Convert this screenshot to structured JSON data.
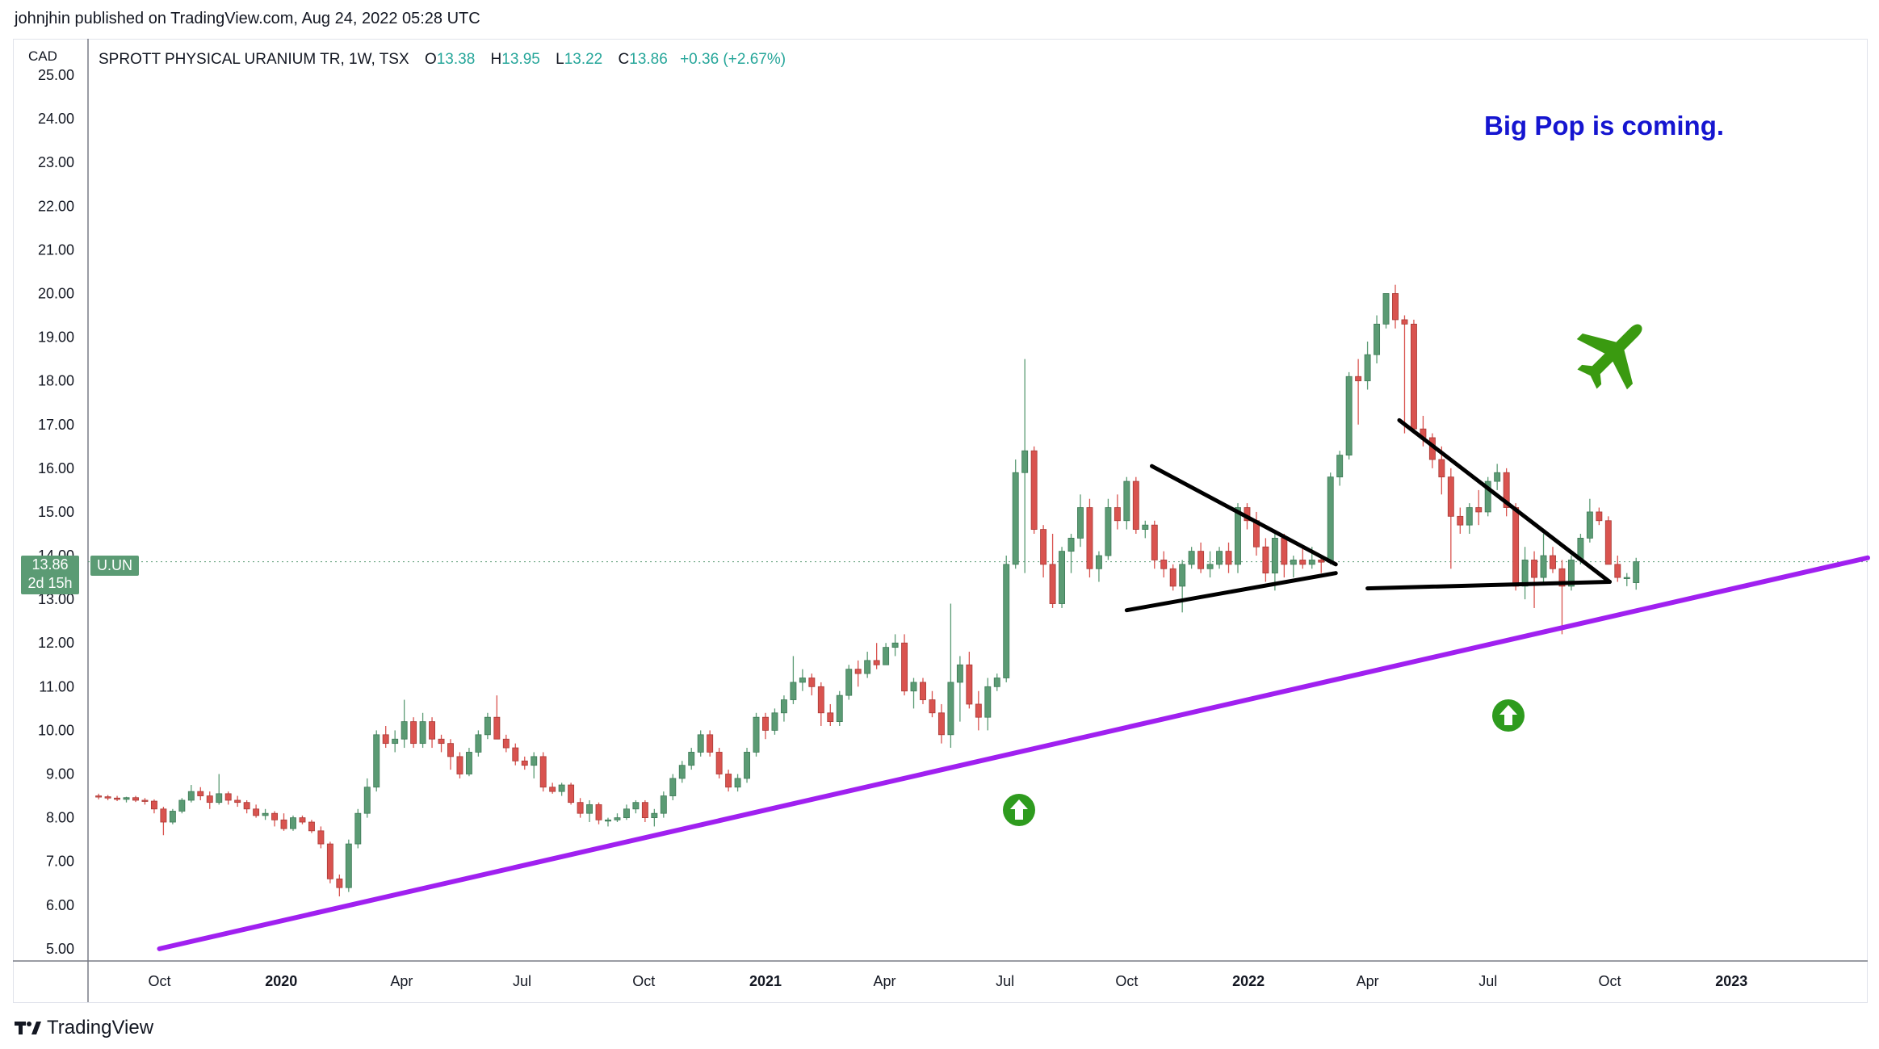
{
  "publisher": {
    "author": "johnjhin",
    "published_text": "published on TradingView.com, Aug 24, 2022 05:28 UTC"
  },
  "brand": {
    "logo_text": "TradingView",
    "logo_icon": "tradingview-logo-icon"
  },
  "colors": {
    "up": "#5b9b74",
    "down": "#d9534f",
    "trendline": "#a020f0",
    "triangle": "#000000",
    "annotation": "#1515d0",
    "arrow": "#2e9b1e",
    "plane": "#3a9a10"
  },
  "legend": {
    "currency": "CAD",
    "title": "SPROTT PHYSICAL URANIUM TR, 1W, TSX",
    "open_label": "O",
    "open": "13.38",
    "high_label": "H",
    "high": "13.95",
    "low_label": "L",
    "low": "13.22",
    "close_label": "C",
    "close": "13.86",
    "change": "+0.36 (+2.67%)"
  },
  "price_tag": {
    "price": "13.86",
    "countdown": "2d 15h",
    "symbol": "U.UN"
  },
  "annotation": {
    "text": "Big Pop is coming."
  },
  "chart_data": {
    "type": "candlestick",
    "interval": "1W",
    "y_ticks": [
      "5.00",
      "6.00",
      "7.00",
      "8.00",
      "9.00",
      "10.00",
      "11.00",
      "12.00",
      "13.00",
      "14.00",
      "15.00",
      "16.00",
      "17.00",
      "18.00",
      "19.00",
      "20.00",
      "21.00",
      "22.00",
      "23.00",
      "24.00",
      "25.00"
    ],
    "ylim": [
      4.85,
      25.0
    ],
    "x_ticks": [
      "Oct",
      "2020",
      "Apr",
      "Jul",
      "Oct",
      "2021",
      "Apr",
      "Jul",
      "Oct",
      "2022",
      "Apr",
      "Jul",
      "Oct",
      "2023"
    ],
    "x_tick_dates": [
      "2019-10-01",
      "2020-01-01",
      "2020-04-01",
      "2020-07-01",
      "2020-10-01",
      "2021-01-01",
      "2021-04-01",
      "2021-07-01",
      "2021-10-01",
      "2022-01-01",
      "2022-04-01",
      "2022-07-01",
      "2022-10-01",
      "2023-01-01"
    ],
    "xlim": [
      "2019-08-08",
      "2023-04-14"
    ],
    "start_week": "2019-08-16",
    "candles_ohlc": [
      [
        8.5,
        8.55,
        8.42,
        8.48
      ],
      [
        8.48,
        8.52,
        8.4,
        8.45
      ],
      [
        8.45,
        8.5,
        8.38,
        8.42
      ],
      [
        8.42,
        8.48,
        8.35,
        8.46
      ],
      [
        8.46,
        8.5,
        8.36,
        8.4
      ],
      [
        8.4,
        8.45,
        8.3,
        8.38
      ],
      [
        8.38,
        8.42,
        8.1,
        8.2
      ],
      [
        8.2,
        8.25,
        7.6,
        7.9
      ],
      [
        7.9,
        8.2,
        7.85,
        8.15
      ],
      [
        8.15,
        8.45,
        8.1,
        8.4
      ],
      [
        8.4,
        8.75,
        8.35,
        8.6
      ],
      [
        8.6,
        8.7,
        8.4,
        8.5
      ],
      [
        8.5,
        8.6,
        8.2,
        8.35
      ],
      [
        8.35,
        9.0,
        8.3,
        8.55
      ],
      [
        8.55,
        8.6,
        8.3,
        8.4
      ],
      [
        8.4,
        8.5,
        8.25,
        8.35
      ],
      [
        8.35,
        8.4,
        8.1,
        8.2
      ],
      [
        8.2,
        8.3,
        8.0,
        8.05
      ],
      [
        8.05,
        8.2,
        7.95,
        8.1
      ],
      [
        8.1,
        8.15,
        7.8,
        7.95
      ],
      [
        7.95,
        8.1,
        7.7,
        7.75
      ],
      [
        7.75,
        8.05,
        7.7,
        8.0
      ],
      [
        8.0,
        8.05,
        7.85,
        7.9
      ],
      [
        7.9,
        7.95,
        7.65,
        7.7
      ],
      [
        7.7,
        7.8,
        7.3,
        7.4
      ],
      [
        7.4,
        7.45,
        6.5,
        6.6
      ],
      [
        6.6,
        6.7,
        6.2,
        6.4
      ],
      [
        6.4,
        7.5,
        6.3,
        7.4
      ],
      [
        7.4,
        8.2,
        7.3,
        8.1
      ],
      [
        8.1,
        8.9,
        8.0,
        8.7
      ],
      [
        8.7,
        10.0,
        8.6,
        9.9
      ],
      [
        9.9,
        10.1,
        9.6,
        9.7
      ],
      [
        9.7,
        10.0,
        9.5,
        9.8
      ],
      [
        9.8,
        10.7,
        9.6,
        10.2
      ],
      [
        10.2,
        10.3,
        9.6,
        9.7
      ],
      [
        9.7,
        10.4,
        9.6,
        10.2
      ],
      [
        10.2,
        10.3,
        9.6,
        9.8
      ],
      [
        9.8,
        9.9,
        9.5,
        9.7
      ],
      [
        9.7,
        9.8,
        9.1,
        9.4
      ],
      [
        9.4,
        9.5,
        8.9,
        9.0
      ],
      [
        9.0,
        9.6,
        8.95,
        9.5
      ],
      [
        9.5,
        10.0,
        9.4,
        9.9
      ],
      [
        9.9,
        10.4,
        9.8,
        10.3
      ],
      [
        10.3,
        10.8,
        10.0,
        9.8
      ],
      [
        9.8,
        9.9,
        9.5,
        9.6
      ],
      [
        9.6,
        9.7,
        9.2,
        9.3
      ],
      [
        9.3,
        9.4,
        9.1,
        9.2
      ],
      [
        9.2,
        9.5,
        8.9,
        9.4
      ],
      [
        9.4,
        9.5,
        8.6,
        8.7
      ],
      [
        8.7,
        8.8,
        8.55,
        8.6
      ],
      [
        8.6,
        8.8,
        8.5,
        8.75
      ],
      [
        8.75,
        8.8,
        8.3,
        8.35
      ],
      [
        8.35,
        8.45,
        8.0,
        8.1
      ],
      [
        8.1,
        8.4,
        7.9,
        8.3
      ],
      [
        8.3,
        8.35,
        7.85,
        7.95
      ],
      [
        7.95,
        8.0,
        7.8,
        7.95
      ],
      [
        7.95,
        8.1,
        7.9,
        8.0
      ],
      [
        8.0,
        8.3,
        7.95,
        8.2
      ],
      [
        8.2,
        8.4,
        8.1,
        8.35
      ],
      [
        8.35,
        8.4,
        7.9,
        8.0
      ],
      [
        8.0,
        8.2,
        7.8,
        8.1
      ],
      [
        8.1,
        8.6,
        8.0,
        8.5
      ],
      [
        8.5,
        9.0,
        8.4,
        8.9
      ],
      [
        8.9,
        9.3,
        8.8,
        9.2
      ],
      [
        9.2,
        9.6,
        9.1,
        9.5
      ],
      [
        9.5,
        10.0,
        9.4,
        9.9
      ],
      [
        9.9,
        10.0,
        9.4,
        9.5
      ],
      [
        9.5,
        9.6,
        8.9,
        9.0
      ],
      [
        9.0,
        9.1,
        8.6,
        8.7
      ],
      [
        8.7,
        9.0,
        8.6,
        8.9
      ],
      [
        8.9,
        9.6,
        8.8,
        9.5
      ],
      [
        9.5,
        10.4,
        9.4,
        10.3
      ],
      [
        10.3,
        10.4,
        9.8,
        10.0
      ],
      [
        10.0,
        10.5,
        9.9,
        10.4
      ],
      [
        10.4,
        10.8,
        10.2,
        10.7
      ],
      [
        10.7,
        11.7,
        10.6,
        11.1
      ],
      [
        11.1,
        11.4,
        10.9,
        11.2
      ],
      [
        11.2,
        11.3,
        10.8,
        11.0
      ],
      [
        11.0,
        11.1,
        10.1,
        10.4
      ],
      [
        10.4,
        10.6,
        10.1,
        10.2
      ],
      [
        10.2,
        10.9,
        10.1,
        10.8
      ],
      [
        10.8,
        11.5,
        10.7,
        11.4
      ],
      [
        11.4,
        11.6,
        11.0,
        11.3
      ],
      [
        11.3,
        11.8,
        11.2,
        11.6
      ],
      [
        11.6,
        12.0,
        11.4,
        11.5
      ],
      [
        11.5,
        12.0,
        11.5,
        11.9
      ],
      [
        11.9,
        12.2,
        11.7,
        12.0
      ],
      [
        12.0,
        12.2,
        10.8,
        10.9
      ],
      [
        10.9,
        11.2,
        10.5,
        11.1
      ],
      [
        11.1,
        11.2,
        10.6,
        10.7
      ],
      [
        10.7,
        10.9,
        10.3,
        10.4
      ],
      [
        10.4,
        10.6,
        9.7,
        9.9
      ],
      [
        9.9,
        12.9,
        9.6,
        11.1
      ],
      [
        11.1,
        11.7,
        10.2,
        11.5
      ],
      [
        11.5,
        11.8,
        10.5,
        10.6
      ],
      [
        10.6,
        10.9,
        10.0,
        10.3
      ],
      [
        10.3,
        11.2,
        10.0,
        11.0
      ],
      [
        11.0,
        11.3,
        10.9,
        11.2
      ],
      [
        11.2,
        14.0,
        11.1,
        13.8
      ],
      [
        13.8,
        16.2,
        13.7,
        15.9
      ],
      [
        15.9,
        18.5,
        13.6,
        16.4
      ],
      [
        16.4,
        16.5,
        14.5,
        14.6
      ],
      [
        14.6,
        14.7,
        13.5,
        13.8
      ],
      [
        13.8,
        14.5,
        12.8,
        12.9
      ],
      [
        12.9,
        14.2,
        12.8,
        14.1
      ],
      [
        14.1,
        14.5,
        13.6,
        14.4
      ],
      [
        14.4,
        15.4,
        14.2,
        15.1
      ],
      [
        15.1,
        15.3,
        13.5,
        13.7
      ],
      [
        13.7,
        14.1,
        13.4,
        14.0
      ],
      [
        14.0,
        15.3,
        13.9,
        15.1
      ],
      [
        15.1,
        15.4,
        14.6,
        14.8
      ],
      [
        14.8,
        15.8,
        14.6,
        15.7
      ],
      [
        15.7,
        15.8,
        14.5,
        14.6
      ],
      [
        14.6,
        14.8,
        14.4,
        14.7
      ],
      [
        14.7,
        14.8,
        13.7,
        13.9
      ],
      [
        13.9,
        14.1,
        13.5,
        13.7
      ],
      [
        13.7,
        13.8,
        13.2,
        13.3
      ],
      [
        13.3,
        13.9,
        12.7,
        13.8
      ],
      [
        13.8,
        14.2,
        13.7,
        14.1
      ],
      [
        14.1,
        14.3,
        13.6,
        13.7
      ],
      [
        13.7,
        14.1,
        13.5,
        13.8
      ],
      [
        13.8,
        14.2,
        13.7,
        14.1
      ],
      [
        14.1,
        14.3,
        13.6,
        13.8
      ],
      [
        13.8,
        15.2,
        13.6,
        15.1
      ],
      [
        15.1,
        15.2,
        14.6,
        14.8
      ],
      [
        14.8,
        15.0,
        14.0,
        14.2
      ],
      [
        14.2,
        14.4,
        13.4,
        13.6
      ],
      [
        13.6,
        14.5,
        13.2,
        14.4
      ],
      [
        14.4,
        14.5,
        13.5,
        13.8
      ],
      [
        13.8,
        14.0,
        13.5,
        13.9
      ],
      [
        13.9,
        14.2,
        13.7,
        13.8
      ],
      [
        13.8,
        14.2,
        13.7,
        13.9
      ],
      [
        13.9,
        14.0,
        13.6,
        13.85
      ],
      [
        13.85,
        15.9,
        13.8,
        15.8
      ],
      [
        15.8,
        16.4,
        15.6,
        16.3
      ],
      [
        16.3,
        18.2,
        16.2,
        18.1
      ],
      [
        18.1,
        18.5,
        17.0,
        18.0
      ],
      [
        18.0,
        18.9,
        17.8,
        18.6
      ],
      [
        18.6,
        19.5,
        18.4,
        19.3
      ],
      [
        19.3,
        20.0,
        19.2,
        20.0
      ],
      [
        20.0,
        20.2,
        19.2,
        19.4
      ],
      [
        19.4,
        19.5,
        16.8,
        19.3
      ],
      [
        19.3,
        19.4,
        16.8,
        16.9
      ],
      [
        16.9,
        17.2,
        16.5,
        16.7
      ],
      [
        16.7,
        16.8,
        16.0,
        16.2
      ],
      [
        16.2,
        16.5,
        15.4,
        15.8
      ],
      [
        15.8,
        16.0,
        13.7,
        14.9
      ],
      [
        14.9,
        15.1,
        14.5,
        14.7
      ],
      [
        14.7,
        15.2,
        14.5,
        15.1
      ],
      [
        15.1,
        15.5,
        14.7,
        15.0
      ],
      [
        15.0,
        15.8,
        14.9,
        15.7
      ],
      [
        15.7,
        16.1,
        15.5,
        15.9
      ],
      [
        15.9,
        16.0,
        14.9,
        15.1
      ],
      [
        15.1,
        15.2,
        13.2,
        13.3
      ],
      [
        13.3,
        14.2,
        13.0,
        13.9
      ],
      [
        13.9,
        14.1,
        12.8,
        13.5
      ],
      [
        13.5,
        14.5,
        13.4,
        14.0
      ],
      [
        14.0,
        14.2,
        13.6,
        13.7
      ],
      [
        13.7,
        13.9,
        12.2,
        13.3
      ],
      [
        13.3,
        14.0,
        13.2,
        13.9
      ],
      [
        13.9,
        14.5,
        13.8,
        14.4
      ],
      [
        14.4,
        15.3,
        14.3,
        15.0
      ],
      [
        15.0,
        15.1,
        14.7,
        14.8
      ],
      [
        14.8,
        14.9,
        13.8,
        13.8
      ],
      [
        13.8,
        14.0,
        13.4,
        13.5
      ],
      [
        13.5,
        13.6,
        13.3,
        13.5
      ],
      [
        13.38,
        13.95,
        13.22,
        13.86
      ]
    ],
    "last_price": 13.86,
    "trendline": {
      "from": [
        "2019-10-01",
        5.0
      ],
      "to": [
        "2023-04-14",
        13.95
      ]
    },
    "triangles": [
      {
        "upper": [
          [
            "2021-10-20",
            16.05
          ],
          [
            "2022-03-08",
            13.8
          ]
        ],
        "lower": [
          [
            "2021-10-01",
            12.75
          ],
          [
            "2022-03-08",
            13.6
          ]
        ]
      },
      {
        "upper": [
          [
            "2022-04-25",
            17.1
          ],
          [
            "2022-10-01",
            13.4
          ]
        ],
        "lower": [
          [
            "2022-04-01",
            13.25
          ],
          [
            "2022-10-01",
            13.4
          ]
        ]
      }
    ]
  }
}
